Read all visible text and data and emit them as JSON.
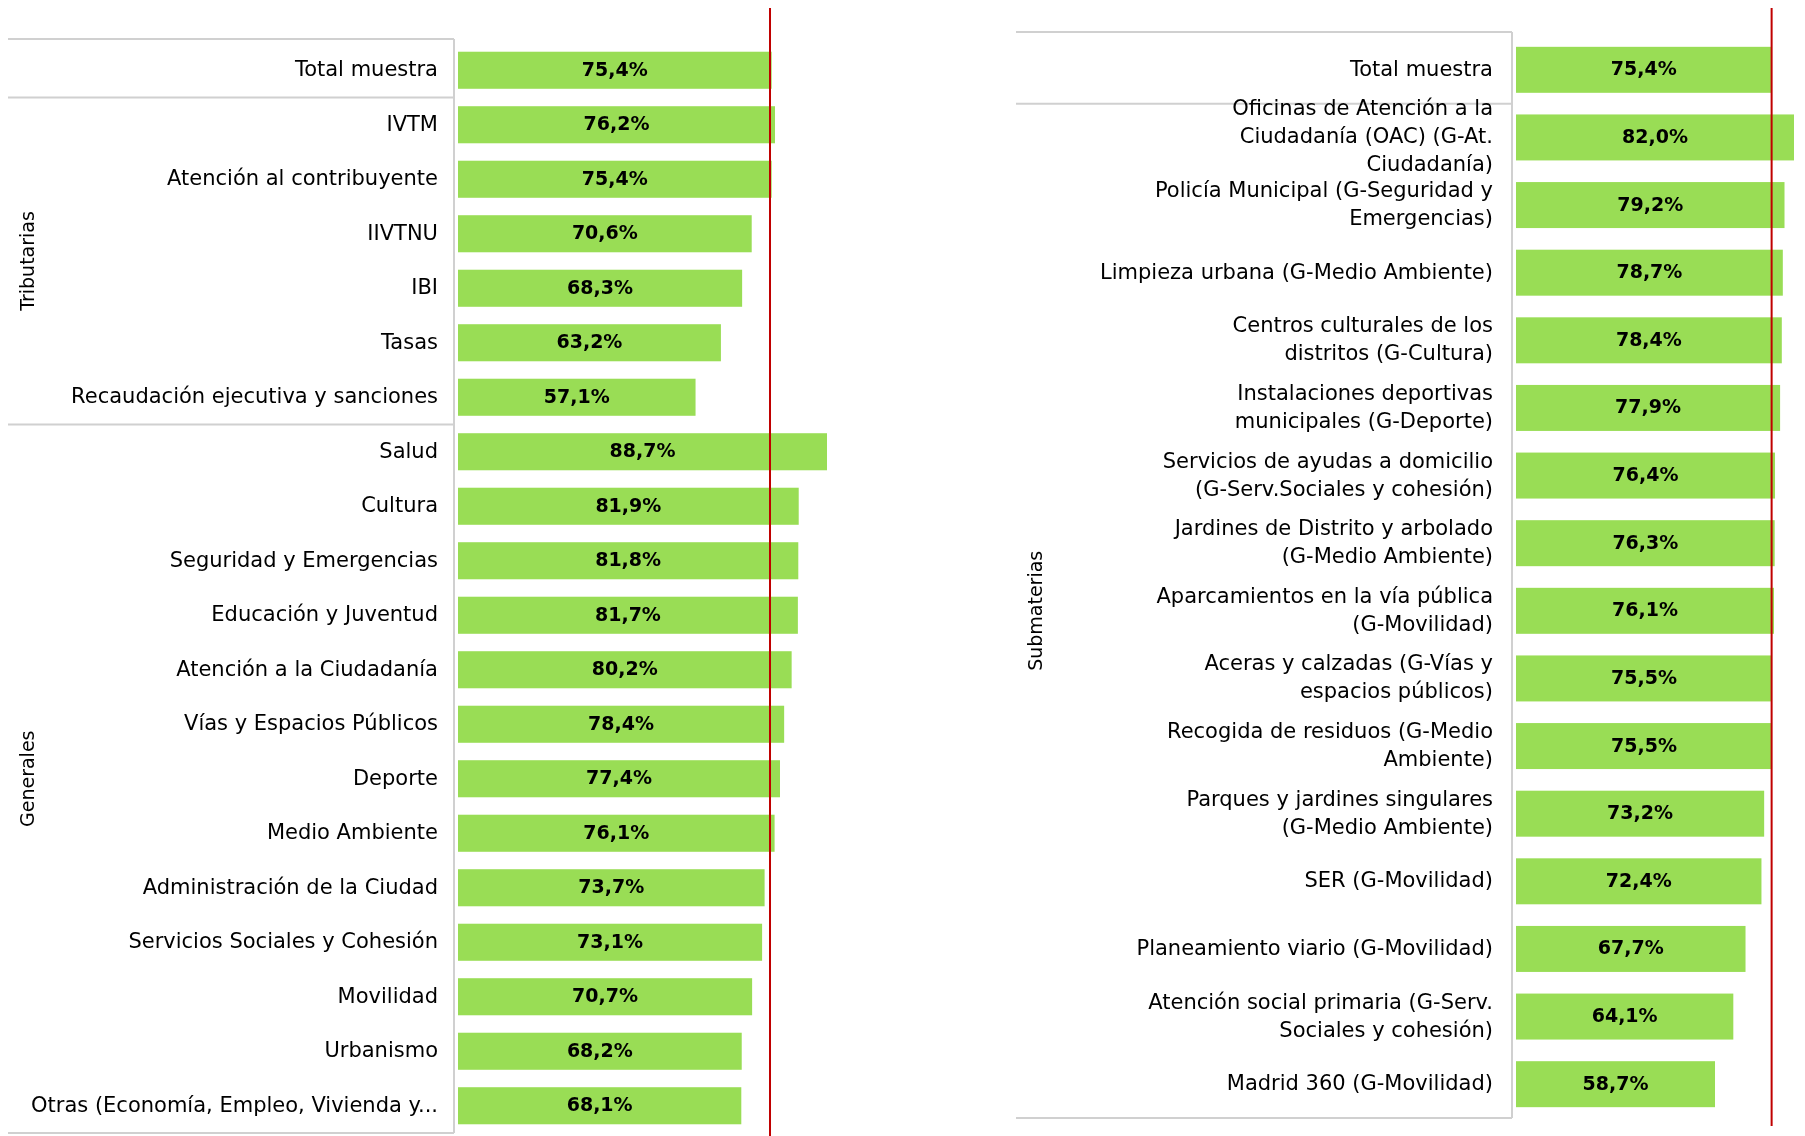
{
  "chart_data": [
    {
      "type": "bar",
      "orientation": "horizontal",
      "categories": [
        "Total muestra",
        "IVTM",
        "Atención al contribuyente",
        "IIVTNU",
        "IBI",
        "Tasas",
        "Recaudación ejecutiva y sanciones",
        "Salud",
        "Cultura",
        "Seguridad y Emergencias",
        "Educación y Juventud",
        "Atención a la Ciudadanía",
        "Vías y Espacios Públicos",
        "Deporte",
        "Medio Ambiente",
        "Administración de la Ciudad",
        "Servicios Sociales y Cohesión",
        "Movilidad",
        "Urbanismo",
        "Otras (Economía, Empleo, Vivienda y..."
      ],
      "values": [
        75.4,
        76.2,
        75.4,
        70.6,
        68.3,
        63.2,
        57.1,
        88.7,
        81.9,
        81.8,
        81.7,
        80.2,
        78.4,
        77.4,
        76.1,
        73.7,
        73.1,
        70.7,
        68.2,
        68.1
      ],
      "value_labels": [
        "75,4%",
        "76,2%",
        "75,4%",
        "70,6%",
        "68,3%",
        "63,2%",
        "57,1%",
        "88,7%",
        "81,9%",
        "81,8%",
        "81,7%",
        "80,2%",
        "78,4%",
        "77,4%",
        "76,1%",
        "73,7%",
        "73,1%",
        "70,7%",
        "68,2%",
        "68,1%"
      ],
      "color": "#99dd55",
      "ref_lines": [
        {
          "axis": "x",
          "value": 75,
          "color": "#c00000"
        }
      ],
      "annotations": [
        "Tributarias",
        "Generales"
      ]
    },
    {
      "type": "bar",
      "orientation": "horizontal",
      "categories": [
        "Total muestra",
        "Oficinas de Atención a la Ciudadanía (OAC) (G-At. Ciudadanía)",
        "Policía Municipal (G-Seguridad y Emergencias)",
        "Limpieza urbana (G-Medio Ambiente)",
        "Centros culturales de los distritos (G-Cultura)",
        "Instalaciones deportivas municipales (G-Deporte)",
        "Servicios de ayudas a domicilio (G-Serv.Sociales y cohesión)",
        "Jardines de Distrito y arbolado (G-Medio Ambiente)",
        "Aparcamientos en la vía pública (G-Movilidad)",
        "Aceras y calzadas (G-Vías y espacios públicos)",
        "Recogida de residuos (G-Medio Ambiente)",
        "Parques y jardines singulares (G-Medio Ambiente)",
        "SER (G-Movilidad)",
        "Planeamiento viario (G-Movilidad)",
        "Atención social primaria (G-Serv. Sociales y cohesión)",
        "Madrid 360 (G-Movilidad)"
      ],
      "values": [
        75.4,
        82.0,
        79.2,
        78.7,
        78.4,
        77.9,
        76.4,
        76.3,
        76.1,
        75.5,
        75.5,
        73.2,
        72.4,
        67.7,
        64.1,
        58.7
      ],
      "value_labels": [
        "75,4%",
        "82,0%",
        "79,2%",
        "78,7%",
        "78,4%",
        "77,9%",
        "76,4%",
        "76,3%",
        "76,1%",
        "75,5%",
        "75,5%",
        "73,2%",
        "72,4%",
        "67,7%",
        "64,1%",
        "58,7%"
      ],
      "color": "#99dd55",
      "ref_lines": [
        {
          "axis": "x",
          "value": 75.4,
          "color": "#c00000"
        }
      ],
      "annotations": [
        "Submaterias"
      ]
    }
  ]
}
